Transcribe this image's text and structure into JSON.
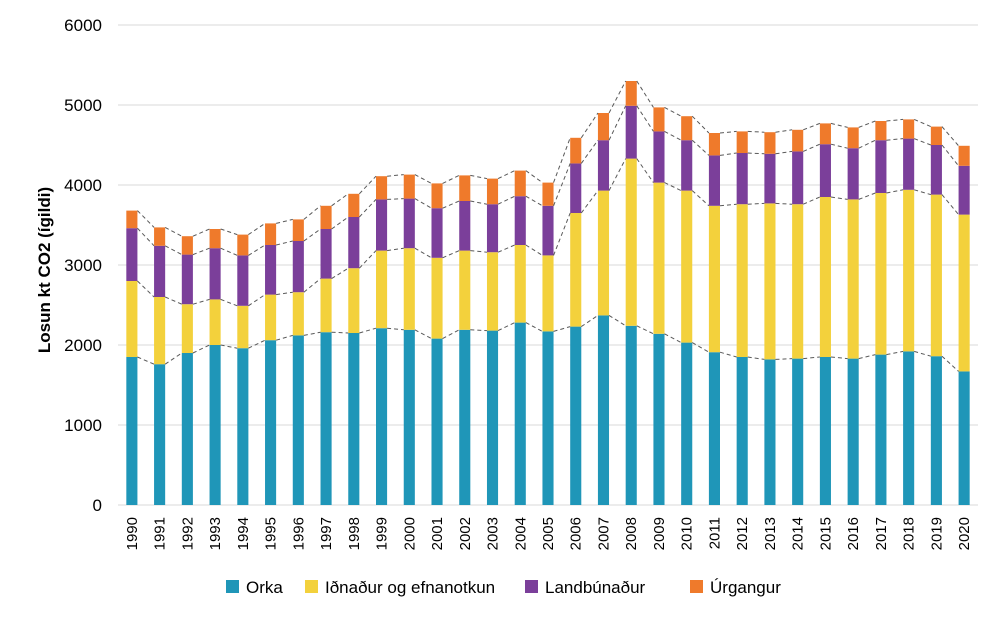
{
  "chart_data": {
    "type": "bar",
    "stacked": true,
    "title": "",
    "xlabel": "",
    "ylabel": "Losun kt CO2 (ígildi)",
    "ylim": [
      0,
      6000
    ],
    "yticks": [
      "0",
      "1000",
      "2000",
      "3000",
      "4000",
      "5000",
      "6000"
    ],
    "grid": true,
    "legend_position": "bottom",
    "connector_lines": "dashed",
    "categories": [
      "1990",
      "1991",
      "1992",
      "1993",
      "1994",
      "1995",
      "1996",
      "1997",
      "1998",
      "1999",
      "2000",
      "2001",
      "2002",
      "2003",
      "2004",
      "2005",
      "2006",
      "2007",
      "2008",
      "2009",
      "2010",
      "2011",
      "2012",
      "2013",
      "2014",
      "2015",
      "2016",
      "2017",
      "2018",
      "2019",
      "2020"
    ],
    "series": [
      {
        "name": "Orka",
        "color": "#1f96b8",
        "values": [
          1850,
          1760,
          1900,
          2000,
          1960,
          2060,
          2120,
          2160,
          2150,
          2210,
          2190,
          2080,
          2190,
          2180,
          2280,
          2170,
          2230,
          2370,
          2240,
          2140,
          2030,
          1910,
          1850,
          1820,
          1830,
          1850,
          1830,
          1880,
          1920,
          1860,
          1670
        ]
      },
      {
        "name": "Iðnaður og efnanotkun",
        "color": "#f3d13c",
        "values": [
          950,
          840,
          610,
          570,
          530,
          570,
          540,
          670,
          810,
          970,
          1020,
          1010,
          990,
          980,
          970,
          950,
          1420,
          1560,
          2090,
          1890,
          1900,
          1830,
          1910,
          1950,
          1930,
          2000,
          1990,
          2020,
          2020,
          2020,
          1960
        ]
      },
      {
        "name": "Landbúnaður",
        "color": "#7b3f9a",
        "values": [
          660,
          640,
          620,
          640,
          630,
          620,
          640,
          620,
          640,
          640,
          620,
          620,
          620,
          600,
          610,
          620,
          620,
          630,
          660,
          640,
          630,
          630,
          640,
          620,
          660,
          660,
          640,
          660,
          640,
          620,
          610
        ]
      },
      {
        "name": "Úrgangur",
        "color": "#ef7a2b",
        "values": [
          220,
          230,
          230,
          240,
          260,
          270,
          270,
          290,
          290,
          290,
          300,
          310,
          320,
          320,
          320,
          290,
          320,
          340,
          310,
          300,
          300,
          280,
          270,
          270,
          270,
          260,
          260,
          240,
          240,
          230,
          250
        ]
      }
    ]
  }
}
